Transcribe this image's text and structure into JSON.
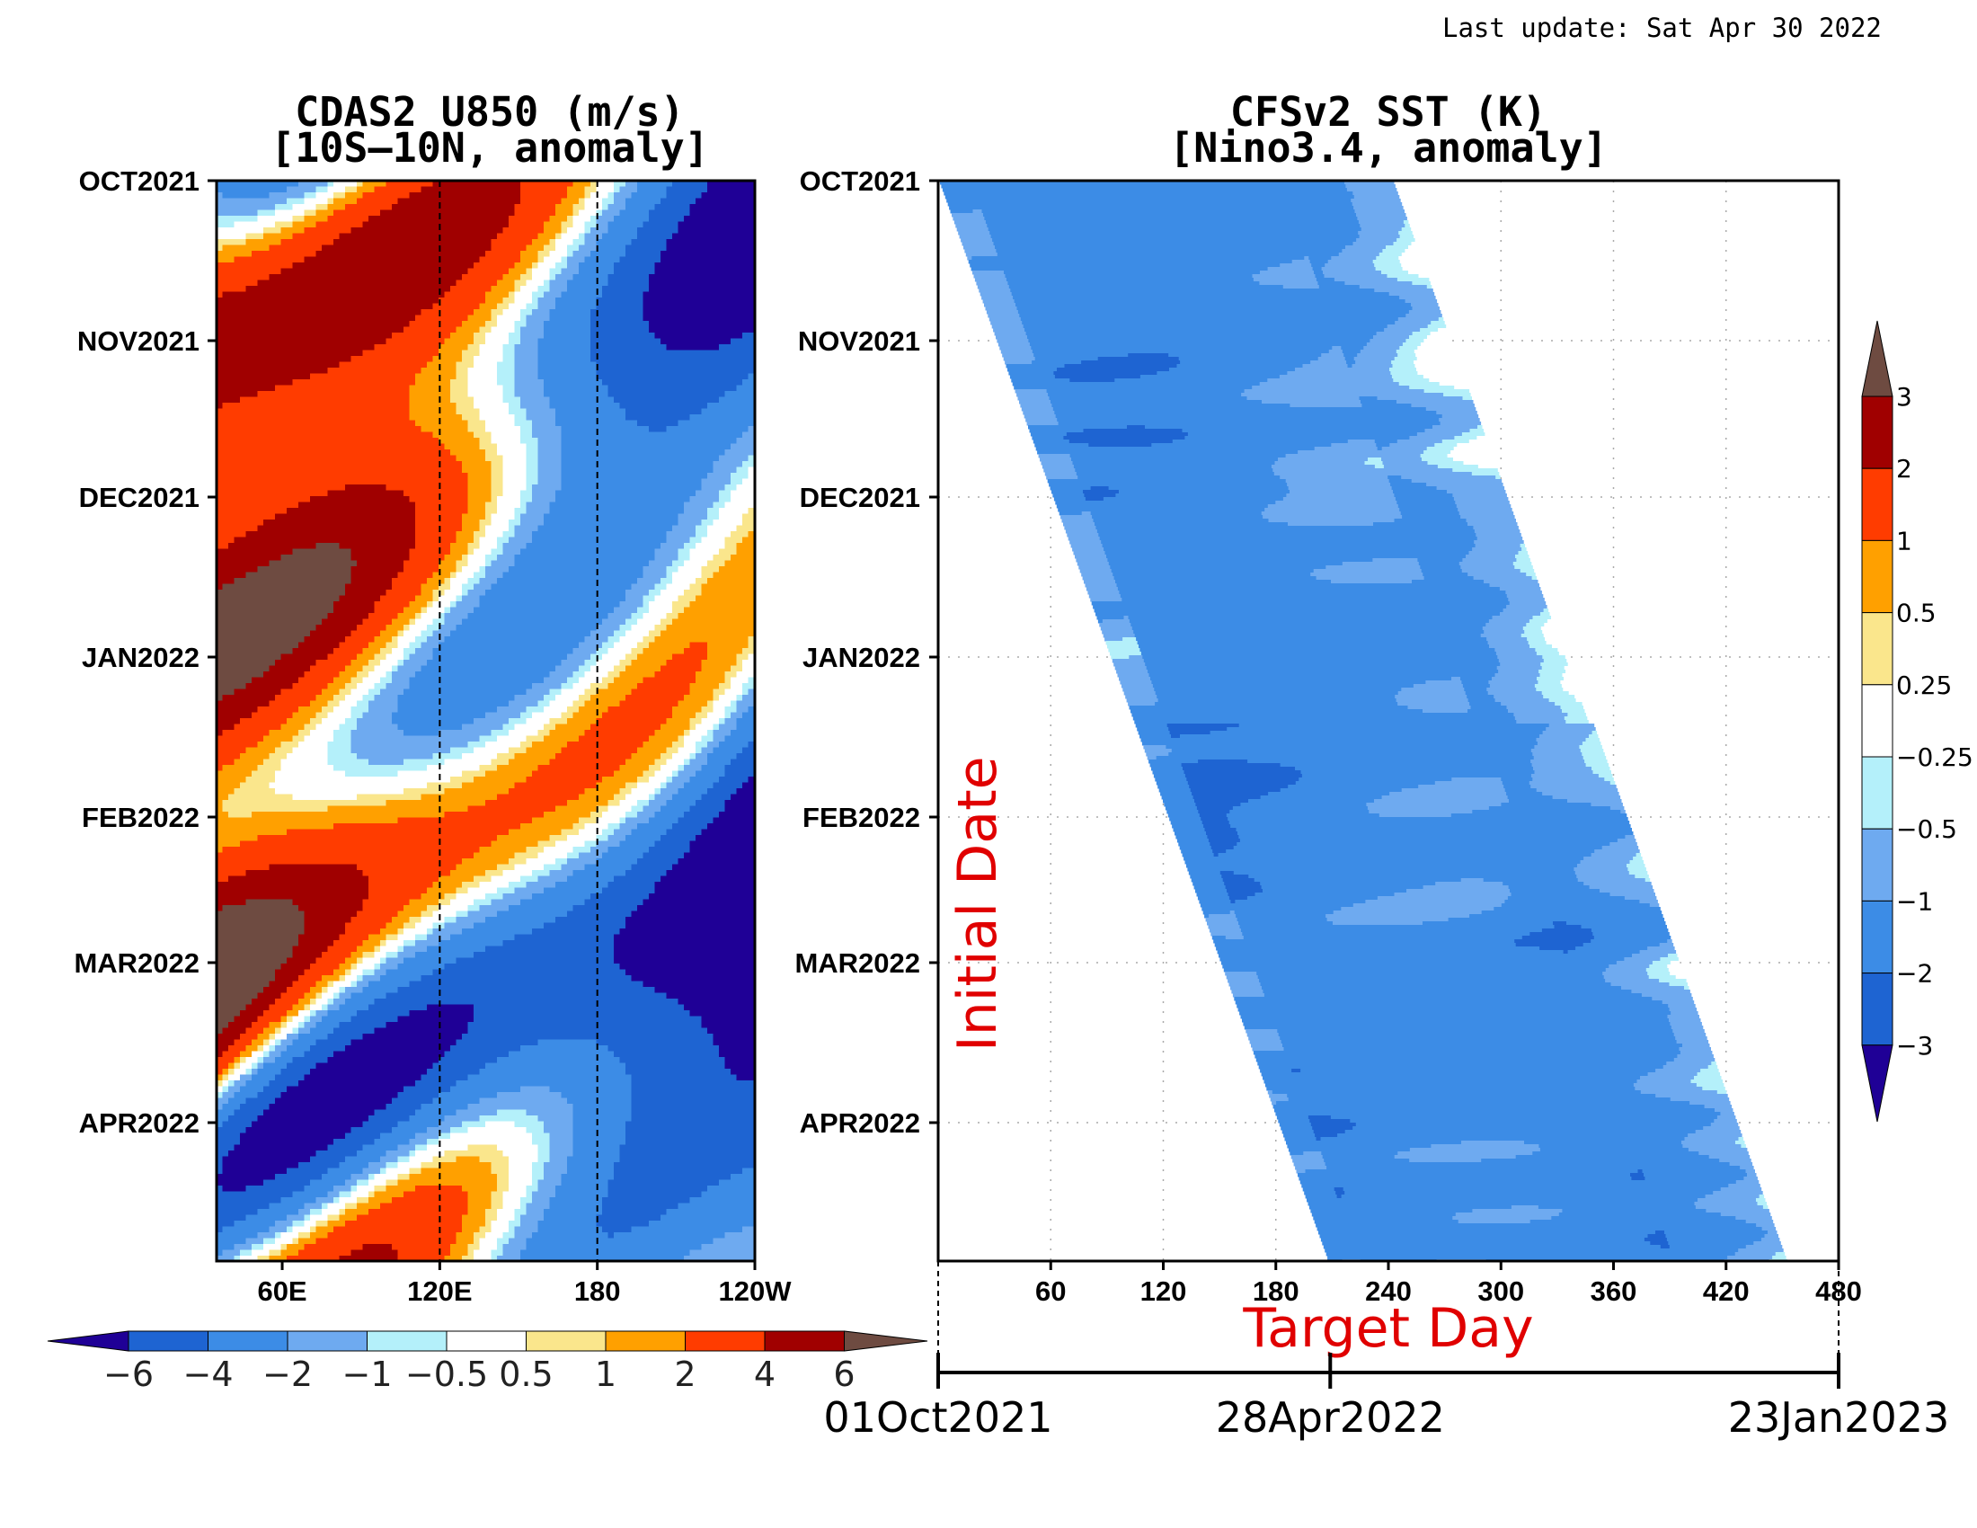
{
  "last_update": "Last update: Sat Apr 30 2022",
  "palette": [
    "#1f0096",
    "#1e64d2",
    "#3c8ce6",
    "#6eaaf0",
    "#b4f0fa",
    "#ffffff",
    "#fae68c",
    "#ffa000",
    "#ff3c00",
    "#a00000",
    "#6e4b41"
  ],
  "chart_data": [
    {
      "type": "heatmap",
      "title_line1": "CDAS2 U850 (m/s)",
      "title_line2": "[10S–10N, anomaly]",
      "y_ticks": [
        "OCT2021",
        "NOV2021",
        "DEC2021",
        "JAN2022",
        "FEB2022",
        "MAR2022",
        "APR2022"
      ],
      "x_ticks": [
        "60E",
        "120E",
        "180",
        "120W"
      ],
      "x_range_deg_east": [
        35,
        240
      ],
      "reference_lines_deg_east": [
        120,
        180
      ],
      "colorbar": {
        "orientation": "horizontal",
        "levels": [
          -6,
          -4,
          -2,
          -1,
          -0.5,
          0.5,
          1,
          2,
          4,
          6
        ],
        "labels": [
          "−6",
          "−4",
          "−2",
          "−1",
          "−0.5",
          "0.5",
          "1",
          "2",
          "4",
          "6"
        ]
      },
      "pattern": "positive (westerly) anomalies dominate west of 120E; negative (easterly) anomalies dominate 120E–120W, strongest near 150E–200E"
    },
    {
      "type": "heatmap",
      "title_line1": "CFSv2 SST (K)",
      "title_line2": "[Nino3.4, anomaly]",
      "y_ticks": [
        "OCT2021",
        "NOV2021",
        "DEC2021",
        "JAN2022",
        "FEB2022",
        "MAR2022",
        "APR2022"
      ],
      "x_ticks": [
        "60",
        "120",
        "180",
        "240",
        "300",
        "360",
        "420",
        "480"
      ],
      "x_range": [
        0,
        480
      ],
      "xlabel": "Target Day",
      "ylabel": "Initial Date",
      "timeline": {
        "labels": [
          "01Oct2021",
          "28Apr2022",
          "23Jan2023"
        ],
        "values": [
          0,
          209,
          480
        ]
      },
      "colorbar": {
        "orientation": "vertical",
        "levels": [
          -3,
          -2,
          -1,
          -0.5,
          -0.25,
          0.25,
          0.5,
          1,
          2,
          3
        ],
        "labels": [
          "−3",
          "−2",
          "−1",
          "−0.5",
          "−0.25",
          "0.25",
          "0.5",
          "1",
          "2",
          "3"
        ]
      },
      "pattern": "forecast band shifted by initial date; mostly −1 to −2 K anomalies, weaker (−0.5 to 0.5) at the longest lead times"
    }
  ]
}
